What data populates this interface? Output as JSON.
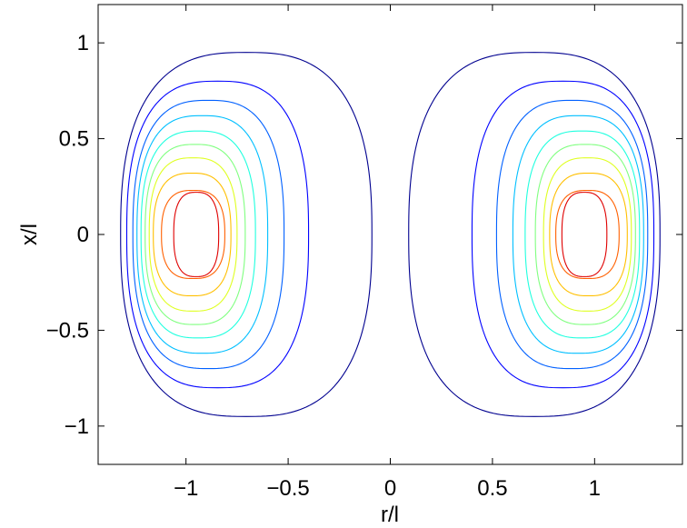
{
  "chart_data": {
    "type": "contour",
    "xlabel": "r/l",
    "ylabel": "x/l",
    "xlim": [
      -1.43,
      1.43
    ],
    "ylim": [
      -1.2,
      1.2
    ],
    "xticks": [
      -1,
      -0.5,
      0,
      0.5,
      1
    ],
    "xtick_labels": [
      "−1",
      "−0.5",
      "0",
      "0.5",
      "1"
    ],
    "yticks": [
      -1,
      -0.5,
      0,
      0.5,
      1
    ],
    "ytick_labels": [
      "−1",
      "−0.5",
      "0",
      "0.5",
      "1"
    ],
    "grid": false,
    "colormap": "jet",
    "vortex_centers": [
      {
        "r": -0.93,
        "x": 0
      },
      {
        "r": 0.93,
        "x": 0
      }
    ],
    "contour_levels": [
      {
        "level": 1,
        "color": "#00008f",
        "r_inner": 0.09,
        "r_outer": 1.32,
        "x_half": 0.95
      },
      {
        "level": 2,
        "color": "#0000ff",
        "r_inner": 0.4,
        "r_outer": 1.29,
        "x_half": 0.8
      },
      {
        "level": 3,
        "color": "#0060ff",
        "r_inner": 0.52,
        "r_outer": 1.26,
        "x_half": 0.7
      },
      {
        "level": 4,
        "color": "#00bfff",
        "r_inner": 0.6,
        "r_outer": 1.24,
        "x_half": 0.62
      },
      {
        "level": 5,
        "color": "#20ffdf",
        "r_inner": 0.66,
        "r_outer": 1.22,
        "x_half": 0.54
      },
      {
        "level": 6,
        "color": "#80ff80",
        "r_inner": 0.71,
        "r_outer": 1.2,
        "x_half": 0.47
      },
      {
        "level": 7,
        "color": "#dfff20",
        "r_inner": 0.75,
        "r_outer": 1.18,
        "x_half": 0.4
      },
      {
        "level": 8,
        "color": "#ffbf00",
        "r_inner": 0.78,
        "r_outer": 1.16,
        "x_half": 0.32
      },
      {
        "level": 9,
        "color": "#ff6000",
        "r_inner": 0.81,
        "r_outer": 1.12,
        "x_half": 0.23
      },
      {
        "level": 10,
        "color": "#df0000",
        "r_inner": 0.84,
        "r_outer": 1.06,
        "x_half": 0.22
      }
    ]
  }
}
